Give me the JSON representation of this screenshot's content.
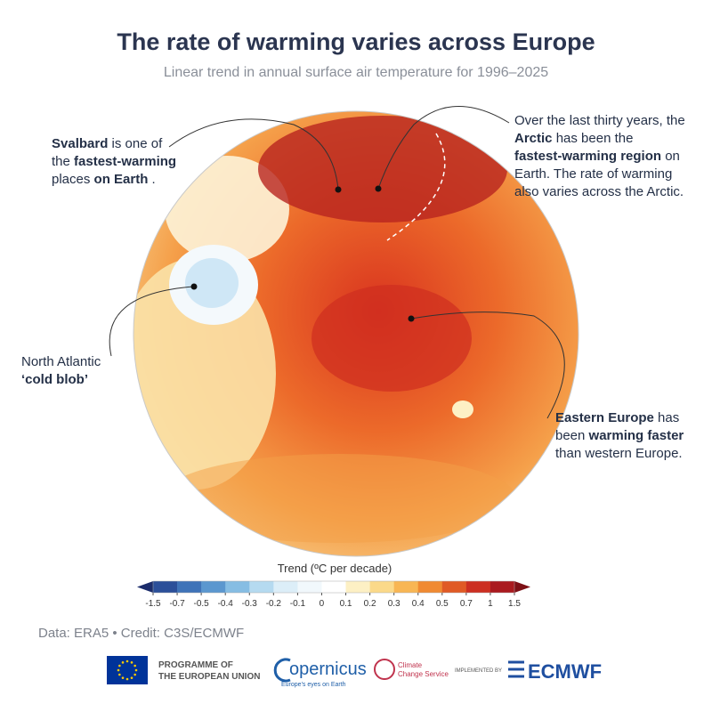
{
  "header": {
    "title": "The rate of warming varies across Europe",
    "subtitle": "Linear trend in annual surface air temperature for 1996–2025"
  },
  "annotations": [
    {
      "lines": [
        [
          {
            "text": "Svalbard",
            "bold": true
          },
          {
            "text": "is one of"
          }
        ],
        [
          {
            "text": "the"
          },
          {
            "text": "fastest-warming",
            "bold": true
          }
        ],
        [
          {
            "text": "places"
          },
          {
            "text": "on Earth",
            "bold": true
          },
          {
            "text": "."
          }
        ]
      ]
    },
    {
      "lines": [
        [
          {
            "text": "Over the last thirty years, the"
          }
        ],
        [
          {
            "text": "Arctic",
            "bold": true
          },
          {
            "text": "has been the"
          }
        ],
        [
          {
            "text": "fastest-warming region",
            "bold": true
          },
          {
            "text": "on"
          }
        ],
        [
          {
            "text": "Earth. The rate of warming"
          }
        ],
        [
          {
            "text": "also varies across the Arctic."
          }
        ]
      ]
    },
    {
      "lines": [
        [
          {
            "text": "North Atlantic"
          }
        ],
        [
          {
            "text": "‘cold blob’",
            "bold": true
          }
        ]
      ]
    },
    {
      "lines": [
        [
          {
            "text": "Eastern Europe",
            "bold": true
          },
          {
            "text": "has"
          }
        ],
        [
          {
            "text": "been"
          },
          {
            "text": "warming faster",
            "bold": true
          }
        ],
        [
          {
            "text": "than western Europe."
          }
        ]
      ]
    }
  ],
  "colorbar": {
    "label": "Trend (ºC per decade)",
    "ticks": [
      -1.5,
      -0.7,
      -0.5,
      -0.4,
      -0.3,
      -0.2,
      -0.1,
      0,
      0.1,
      0.2,
      0.3,
      0.4,
      0.5,
      0.7,
      1,
      1.5
    ],
    "colors": [
      "#1b2c6b",
      "#2b4f99",
      "#3f73b8",
      "#5b97cf",
      "#86bde3",
      "#b5daf0",
      "#dceef8",
      "#f1f8fc",
      "#ffffff",
      "#fdf0c4",
      "#fbd98a",
      "#f8b654",
      "#f08a32",
      "#e05a25",
      "#cc2f22",
      "#aa1a1f",
      "#7d1016"
    ]
  },
  "credit": "Data: ERA5 • Credit: C3S/ECMWF",
  "logos": {
    "eu": [
      "PROGRAMME OF",
      "THE EUROPEAN UNION"
    ],
    "copernicus": "opernicus",
    "copernicus_tagline": "Europe's eyes on Earth",
    "c3s": [
      "Climate",
      "Change Service"
    ],
    "implemented": "IMPLEMENTED BY",
    "ecmwf": "ECMWF"
  }
}
